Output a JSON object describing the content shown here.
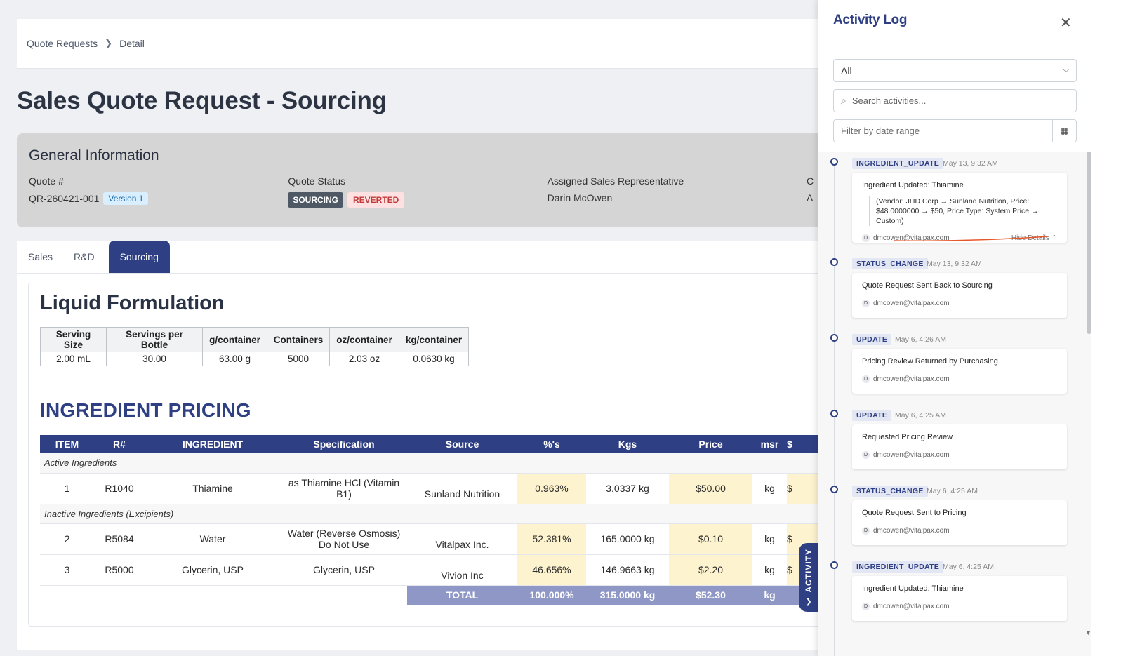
{
  "breadcrumb": {
    "items": [
      "Quote Requests",
      "Detail"
    ]
  },
  "page": {
    "title": "Sales Quote Request - Sourcing"
  },
  "general": {
    "heading": "General Information",
    "quote_label": "Quote #",
    "quote_value": "QR-260421-001",
    "version": "Version 1",
    "status_label": "Quote Status",
    "status_badge_1": "SOURCING",
    "status_badge_2": "REVERTED",
    "rep_label": "Assigned Sales Representative",
    "rep_value": "Darin McOwen",
    "extra_label_partial": "C",
    "extra_value_partial": "A"
  },
  "tabs": [
    "Sales",
    "R&D",
    "Sourcing"
  ],
  "formulation": {
    "title": "Liquid Formulation",
    "headers": [
      "Serving Size",
      "Servings per Bottle",
      "g/container",
      "Containers",
      "oz/container",
      "kg/container"
    ],
    "values": [
      "2.00 mL",
      "30.00",
      "63.00 g",
      "5000",
      "2.03 oz",
      "0.0630 kg"
    ]
  },
  "pricing": {
    "title": "INGREDIENT PRICING",
    "headers": [
      "ITEM",
      "R#",
      "INGREDIENT",
      "Specification",
      "Source",
      "%'s",
      "Kgs",
      "Price",
      "msr",
      "$"
    ],
    "group_active": "Active Ingredients",
    "group_inactive": "Inactive Ingredients (Excipients)",
    "rows": [
      {
        "item": "1",
        "r": "R1040",
        "ingredient": "Thiamine",
        "spec": "as Thiamine HCl (Vitamin B1)",
        "source": "Sunland Nutrition",
        "pct": "0.963%",
        "kgs": "3.0337 kg",
        "price": "$50.00",
        "msr": "kg",
        "cut": "$"
      },
      {
        "item": "2",
        "r": "R5084",
        "ingredient": "Water",
        "spec": "Water (Reverse Osmosis) Do Not Use",
        "source": "Vitalpax Inc.",
        "pct": "52.381%",
        "kgs": "165.0000 kg",
        "price": "$0.10",
        "msr": "kg",
        "cut": "$"
      },
      {
        "item": "3",
        "r": "R5000",
        "ingredient": "Glycerin, USP",
        "spec": "Glycerin, USP",
        "source": "Vivion Inc",
        "pct": "46.656%",
        "kgs": "146.9663 kg",
        "price": "$2.20",
        "msr": "kg",
        "cut": "$"
      }
    ],
    "total": {
      "label": "TOTAL",
      "pct": "100.000%",
      "kgs": "315.0000 kg",
      "price": "$52.30",
      "msr": "kg"
    }
  },
  "activity_tab": {
    "label": "ACTIVITY"
  },
  "panel": {
    "title": "Activity Log",
    "select_value": "All",
    "search_placeholder": "Search activities...",
    "date_placeholder": "Filter by date range",
    "entries": [
      {
        "type": "INGREDIENT_UPDATE",
        "time": "May 13, 9:32 AM",
        "title": "Ingredient Updated: Thiamine",
        "detail_line1": "(Vendor: JHD Corp → Sunland Nutrition, Price:",
        "detail_line2": "$48.0000000 → $50, Price Type: System Price → Custom)",
        "user": "dmcowen@vitalpax.com",
        "toggle": "Hide Details"
      },
      {
        "type": "STATUS_CHANGE",
        "time": "May 13, 9:32 AM",
        "title": "Quote Request Sent Back to Sourcing",
        "user": "dmcowen@vitalpax.com"
      },
      {
        "type": "UPDATE",
        "time": "May 6, 4:26 AM",
        "title": "Pricing Review Returned by Purchasing",
        "user": "dmcowen@vitalpax.com"
      },
      {
        "type": "UPDATE",
        "time": "May 6, 4:25 AM",
        "title": "Requested Pricing Review",
        "user": "dmcowen@vitalpax.com"
      },
      {
        "type": "STATUS_CHANGE",
        "time": "May 6, 4:25 AM",
        "title": "Quote Request Sent to Pricing",
        "user": "dmcowen@vitalpax.com"
      },
      {
        "type": "INGREDIENT_UPDATE",
        "time": "May 6, 4:25 AM",
        "title": "Ingredient Updated: Thiamine",
        "user": "dmcowen@vitalpax.com"
      }
    ]
  },
  "colors": {
    "accent": "#2e3f83",
    "highlight": "#fdf3cf",
    "total": "#8f97c7"
  }
}
